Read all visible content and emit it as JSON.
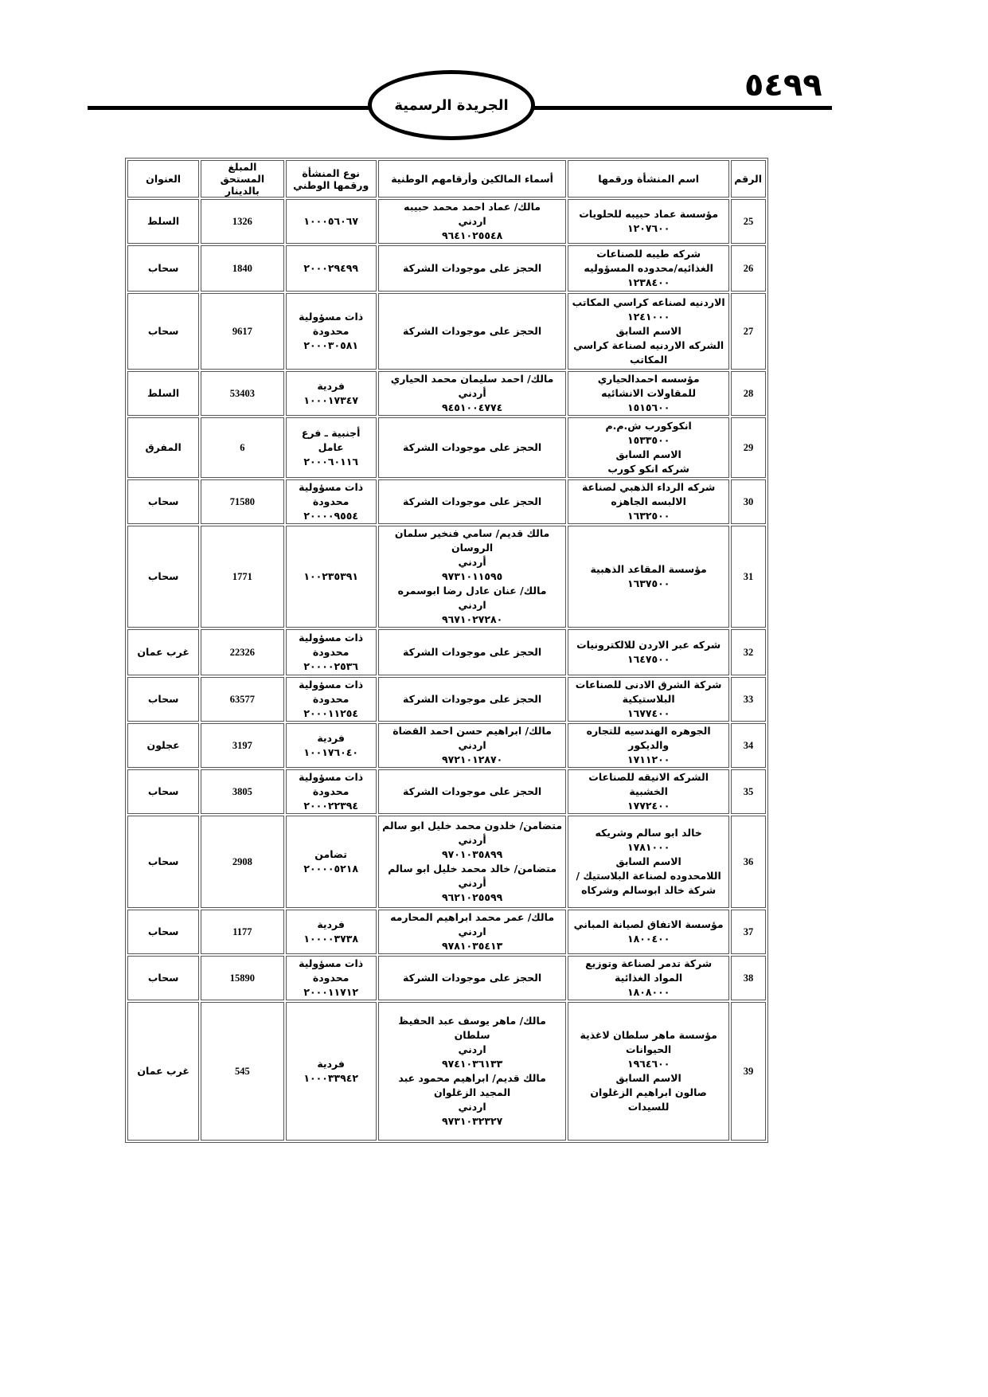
{
  "header": {
    "page_number": "٥٤٩٩",
    "title": "الجريدة الرسمية"
  },
  "table": {
    "columns": [
      "الرقم",
      "اسم المنشأة ورقمها",
      "أسماء المالكين وأرقامهم الوطنية",
      "نوع المنشأة ورقمها الوطني",
      "المبلغ المستحق بالدينار",
      "العنوان"
    ],
    "rows": [
      {
        "num": "25",
        "name": [
          "مؤسسة عماد حبيبه للحلويات",
          "١٢٠٧٦٠٠"
        ],
        "owners": [
          "مالك/ عماد احمد محمد حبيبه",
          "اردني",
          "٩٦٤١٠٢٥٥٤٨"
        ],
        "type": [
          "١٠٠٠٥٦٠٦٧"
        ],
        "amount": "1326",
        "address": "السلط"
      },
      {
        "num": "26",
        "name": [
          "شركه طيبه للصناعات",
          "الغذائيه/محدوده المسؤوليه",
          "١٢٣٨٤٠٠"
        ],
        "owners": [
          "الحجز على موجودات الشركة"
        ],
        "type": [
          "٢٠٠٠٢٩٤٩٩"
        ],
        "amount": "1840",
        "address": "سحاب"
      },
      {
        "num": "27",
        "name": [
          "الاردنيه لصناعه كراسي المكاتب",
          "١٢٤١٠٠٠",
          "الاسم السابق",
          "الشركه الاردنيه لصناعة كراسي المكاتب"
        ],
        "owners": [
          "الحجز على موجودات الشركة"
        ],
        "type": [
          "ذات مسؤولية",
          "محدودة",
          "٢٠٠٠٣٠٥٨١"
        ],
        "amount": "9617",
        "address": "سحاب"
      },
      {
        "num": "28",
        "name": [
          "مؤسسه احمدالحياري للمقاولات الانشائيه",
          "١٥١٥٦٠٠"
        ],
        "owners": [
          "مالك/ احمد سليمان محمد الحياري",
          "أردني",
          "٩٤٥١٠٠٤٧٧٤"
        ],
        "type": [
          "فردية",
          "١٠٠٠١٧٣٤٧"
        ],
        "amount": "53403",
        "address": "السلط"
      },
      {
        "num": "29",
        "name": [
          "انكوكورب ش.م.م",
          "١٥٣٣٥٠٠",
          "الاسم السابق",
          "شركه انكو كورب"
        ],
        "owners": [
          "الحجز على موجودات الشركة"
        ],
        "type": [
          "أجنبية ـ فرع عامل",
          "٢٠٠٠٦٠١١٦"
        ],
        "amount": "6",
        "address": "المفرق"
      },
      {
        "num": "30",
        "name": [
          "شركه الرداء الذهبي لصناعة الالبسه الجاهزه",
          "١٦٣٢٥٠٠"
        ],
        "owners": [
          "الحجز على موجودات الشركة"
        ],
        "type": [
          "ذات مسؤولية",
          "محدودة",
          "٢٠٠٠٠٩٥٥٤"
        ],
        "amount": "71580",
        "address": "سحاب"
      },
      {
        "num": "31",
        "name": [
          "مؤسسة المقاعد الذهبية",
          "١٦٣٧٥٠٠"
        ],
        "owners": [
          "مالك قديم/ سامي فنخير سلمان الروسان",
          "أردني",
          "٩٧٣١٠١١٥٩٥",
          "مالك/ عنان عادل رضا ابوسمره",
          "اردني",
          "٩٦٧١٠٢٧٢٨٠"
        ],
        "type": [
          "١٠٠٢٣٥٣٩١"
        ],
        "amount": "1771",
        "address": "سحاب"
      },
      {
        "num": "32",
        "name": [
          "شركه عبر الاردن للالكترونيات",
          "١٦٤٧٥٠٠"
        ],
        "owners": [
          "الحجز على موجودات الشركة"
        ],
        "type": [
          "ذات مسؤولية",
          "محدودة",
          "٢٠٠٠٠٢٥٣٦"
        ],
        "amount": "22326",
        "address": "غرب عمان"
      },
      {
        "num": "33",
        "name": [
          "شركة الشرق الادنى للصناعات البلاستيكية",
          "١٦٧٧٤٠٠"
        ],
        "owners": [
          "الحجز على موجودات الشركة"
        ],
        "type": [
          "ذات مسؤولية",
          "محدودة",
          "٢٠٠٠١١٢٥٤"
        ],
        "amount": "63577",
        "address": "سحاب"
      },
      {
        "num": "34",
        "name": [
          "الجوهره الهندسيه للتجاره والديكور",
          "١٧١١٢٠٠"
        ],
        "owners": [
          "مالك/ ابراهيم حسن احمد القضاة",
          "اردني",
          "٩٧٢١٠١٢٨٧٠"
        ],
        "type": [
          "فردية",
          "١٠٠١٧٦٠٤٠"
        ],
        "amount": "3197",
        "address": "عجلون"
      },
      {
        "num": "35",
        "name": [
          "الشركه الانيقه للصناعات الخشبية",
          "١٧٧٢٤٠٠"
        ],
        "owners": [
          "الحجز على موجودات الشركة"
        ],
        "type": [
          "ذات مسؤولية",
          "محدودة",
          "٢٠٠٠٢٢٣٩٤"
        ],
        "amount": "3805",
        "address": "سحاب"
      },
      {
        "num": "36",
        "name": [
          "خالد ابو سالم وشريكه",
          "١٧٨١٠٠٠",
          "الاسم السابق",
          "اللامحدوده لصناعة البلاستيك /",
          "شركة خالد ابوسالم وشركاه"
        ],
        "owners": [
          "متضامن/ خلدون محمد خليل ابو سالم",
          "أردني",
          "٩٧٠١٠٣٥٨٩٩",
          "متضامن/ خالد محمد خليل ابو سالم",
          "أردني",
          "٩٦٢١٠٢٥٥٩٩"
        ],
        "type": [
          "تضامن",
          "٢٠٠٠٠٥٢١٨"
        ],
        "amount": "2908",
        "address": "سحاب"
      },
      {
        "num": "37",
        "name": [
          "مؤسسة الاتفاق لصيانة المباني",
          "١٨٠٠٤٠٠"
        ],
        "owners": [
          "مالك/ عمر محمد ابراهيم المحارمه",
          "اردني",
          "٩٧٨١٠٣٥٤١٣"
        ],
        "type": [
          "فردية",
          "١٠٠٠٠٣٧٣٨"
        ],
        "amount": "1177",
        "address": "سحاب"
      },
      {
        "num": "38",
        "name": [
          "شركة تدمر لصناعة وتوزيع المواد الغذائية",
          "١٨٠٨٠٠٠"
        ],
        "owners": [
          "الحجز على موجودات الشركة"
        ],
        "type": [
          "ذات مسؤولية",
          "محدودة",
          "٢٠٠٠١١٧١٢"
        ],
        "amount": "15890",
        "address": "سحاب"
      },
      {
        "num": "39",
        "name": [
          "مؤسسة ماهر سلطان لاغذية الحيوانات",
          "١٩٦٤٦٠٠",
          "الاسم السابق",
          "صالون ابراهيم الزغلوان للسيدات"
        ],
        "owners": [
          "مالك/ ماهر يوسف عبد الحفيظ سلطان",
          "اردني",
          "٩٧٤١٠٣٦١٣٣",
          "مالك قديم/ ابراهيم محمود عبد المجيد الزغلوان",
          "اردني",
          "٩٧٣١٠٣٢٣٢٧"
        ],
        "type": [
          "فردية",
          "١٠٠٠٣٣٩٤٢"
        ],
        "amount": "545",
        "address": "غرب عمان"
      }
    ]
  }
}
